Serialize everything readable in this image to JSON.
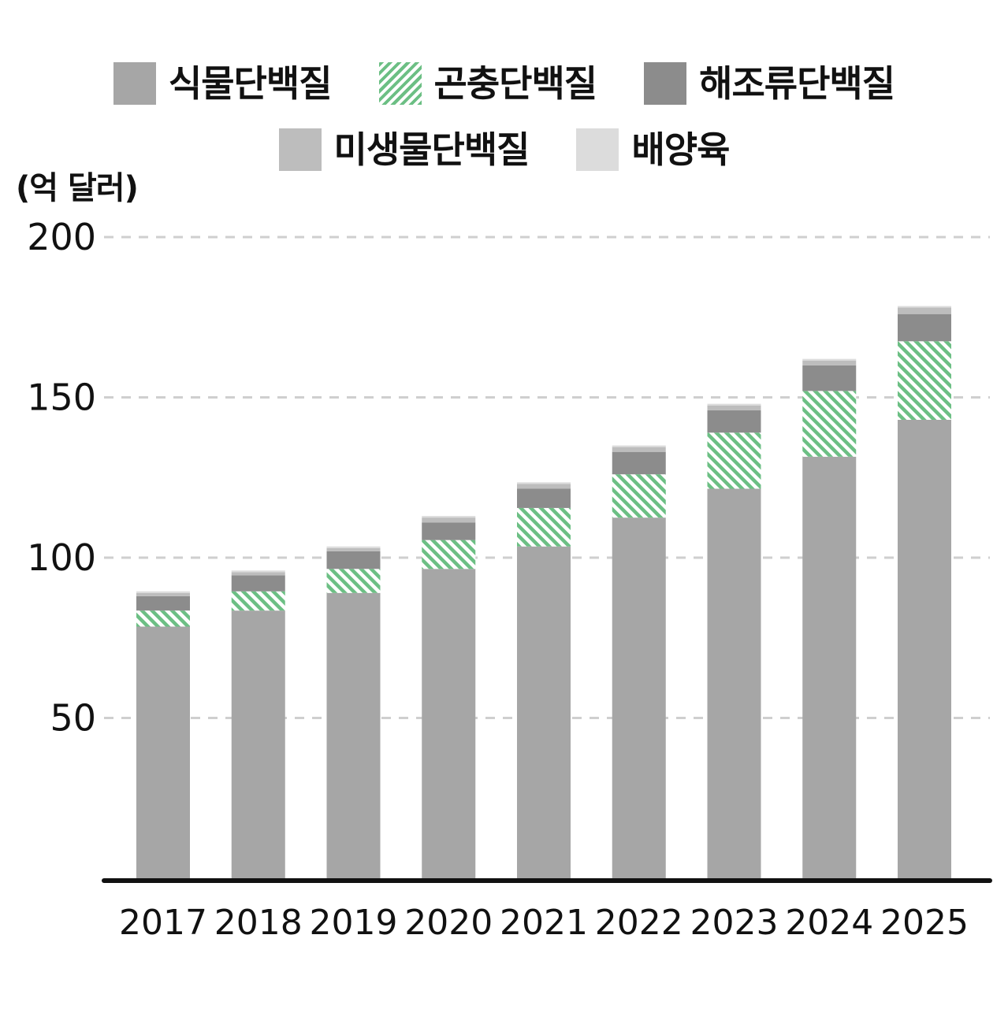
{
  "chart_data": {
    "type": "bar",
    "stacked": true,
    "unit_label": "(억 달러)",
    "categories": [
      "2017",
      "2018",
      "2019",
      "2020",
      "2021",
      "2022",
      "2023",
      "2024",
      "2025"
    ],
    "series": [
      {
        "name": "식물단백질",
        "color": "#a6a6a6",
        "pattern": "solid",
        "values": [
          78.5,
          83.5,
          89,
          96.5,
          103.5,
          112.5,
          121.5,
          131.5,
          143
        ]
      },
      {
        "name": "곤충단백질",
        "color": "#6cbf84",
        "pattern": "hatch",
        "values": [
          5,
          6,
          7.5,
          9,
          12,
          13.5,
          17.5,
          20.5,
          24.5
        ]
      },
      {
        "name": "해조류단백질",
        "color": "#8c8c8c",
        "pattern": "solid",
        "values": [
          4.5,
          5,
          5.5,
          5.5,
          6,
          7,
          7,
          8,
          8.5
        ]
      },
      {
        "name": "미생물단백질",
        "color": "#bdbdbd",
        "pattern": "solid",
        "values": [
          1,
          1,
          1,
          1.5,
          1.5,
          1.5,
          1.5,
          1.5,
          2
        ]
      },
      {
        "name": "배양육",
        "color": "#dcdcdc",
        "pattern": "solid",
        "values": [
          0.5,
          0.5,
          0.5,
          0.5,
          0.5,
          0.5,
          0.5,
          0.5,
          0.5
        ]
      }
    ],
    "yticks": [
      50,
      100,
      150,
      200
    ],
    "ylim": [
      0,
      200
    ],
    "grid": "dashed-horizontal",
    "legend_position": "top-center",
    "xlabel": "",
    "ylabel": "",
    "title": ""
  }
}
